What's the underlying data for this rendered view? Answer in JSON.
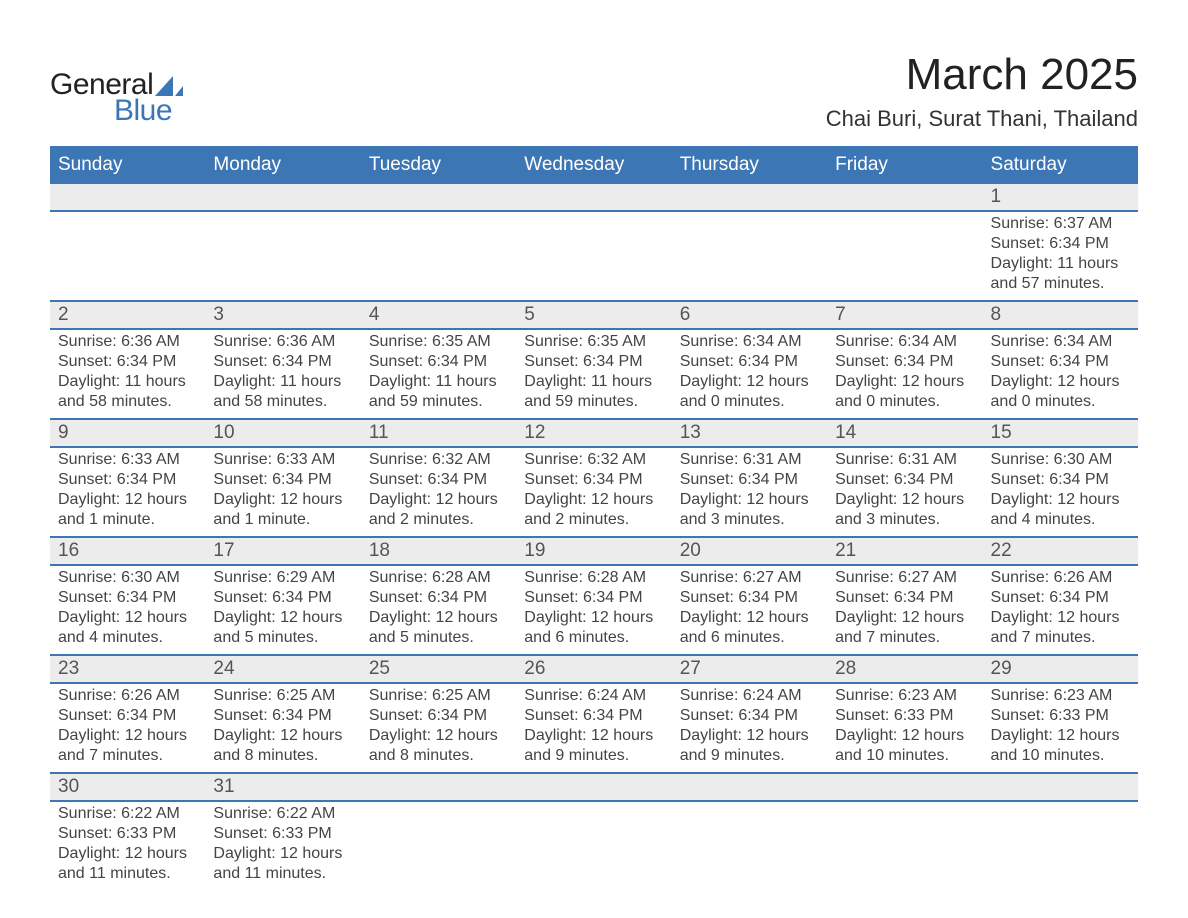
{
  "logo": {
    "text1": "General",
    "text2": "Blue",
    "shape_color": "#3d76b5"
  },
  "title": "March 2025",
  "location": "Chai Buri, Surat Thani, Thailand",
  "colors": {
    "header_bg": "#3d76b5",
    "header_text": "#ffffff",
    "daynum_bg": "#ececec",
    "row_border": "#3d76b5",
    "body_text": "#444444",
    "title_text": "#222222"
  },
  "typography": {
    "title_fontsize": 44,
    "location_fontsize": 22,
    "header_fontsize": 19,
    "daynum_fontsize": 19,
    "detail_fontsize": 16
  },
  "layout": {
    "columns": 7,
    "weeks": 6
  },
  "day_headers": [
    "Sunday",
    "Monday",
    "Tuesday",
    "Wednesday",
    "Thursday",
    "Friday",
    "Saturday"
  ],
  "weeks": [
    [
      null,
      null,
      null,
      null,
      null,
      null,
      {
        "n": "1",
        "sunrise": "6:37 AM",
        "sunset": "6:34 PM",
        "daylight": "11 hours and 57 minutes."
      }
    ],
    [
      {
        "n": "2",
        "sunrise": "6:36 AM",
        "sunset": "6:34 PM",
        "daylight": "11 hours and 58 minutes."
      },
      {
        "n": "3",
        "sunrise": "6:36 AM",
        "sunset": "6:34 PM",
        "daylight": "11 hours and 58 minutes."
      },
      {
        "n": "4",
        "sunrise": "6:35 AM",
        "sunset": "6:34 PM",
        "daylight": "11 hours and 59 minutes."
      },
      {
        "n": "5",
        "sunrise": "6:35 AM",
        "sunset": "6:34 PM",
        "daylight": "11 hours and 59 minutes."
      },
      {
        "n": "6",
        "sunrise": "6:34 AM",
        "sunset": "6:34 PM",
        "daylight": "12 hours and 0 minutes."
      },
      {
        "n": "7",
        "sunrise": "6:34 AM",
        "sunset": "6:34 PM",
        "daylight": "12 hours and 0 minutes."
      },
      {
        "n": "8",
        "sunrise": "6:34 AM",
        "sunset": "6:34 PM",
        "daylight": "12 hours and 0 minutes."
      }
    ],
    [
      {
        "n": "9",
        "sunrise": "6:33 AM",
        "sunset": "6:34 PM",
        "daylight": "12 hours and 1 minute."
      },
      {
        "n": "10",
        "sunrise": "6:33 AM",
        "sunset": "6:34 PM",
        "daylight": "12 hours and 1 minute."
      },
      {
        "n": "11",
        "sunrise": "6:32 AM",
        "sunset": "6:34 PM",
        "daylight": "12 hours and 2 minutes."
      },
      {
        "n": "12",
        "sunrise": "6:32 AM",
        "sunset": "6:34 PM",
        "daylight": "12 hours and 2 minutes."
      },
      {
        "n": "13",
        "sunrise": "6:31 AM",
        "sunset": "6:34 PM",
        "daylight": "12 hours and 3 minutes."
      },
      {
        "n": "14",
        "sunrise": "6:31 AM",
        "sunset": "6:34 PM",
        "daylight": "12 hours and 3 minutes."
      },
      {
        "n": "15",
        "sunrise": "6:30 AM",
        "sunset": "6:34 PM",
        "daylight": "12 hours and 4 minutes."
      }
    ],
    [
      {
        "n": "16",
        "sunrise": "6:30 AM",
        "sunset": "6:34 PM",
        "daylight": "12 hours and 4 minutes."
      },
      {
        "n": "17",
        "sunrise": "6:29 AM",
        "sunset": "6:34 PM",
        "daylight": "12 hours and 5 minutes."
      },
      {
        "n": "18",
        "sunrise": "6:28 AM",
        "sunset": "6:34 PM",
        "daylight": "12 hours and 5 minutes."
      },
      {
        "n": "19",
        "sunrise": "6:28 AM",
        "sunset": "6:34 PM",
        "daylight": "12 hours and 6 minutes."
      },
      {
        "n": "20",
        "sunrise": "6:27 AM",
        "sunset": "6:34 PM",
        "daylight": "12 hours and 6 minutes."
      },
      {
        "n": "21",
        "sunrise": "6:27 AM",
        "sunset": "6:34 PM",
        "daylight": "12 hours and 7 minutes."
      },
      {
        "n": "22",
        "sunrise": "6:26 AM",
        "sunset": "6:34 PM",
        "daylight": "12 hours and 7 minutes."
      }
    ],
    [
      {
        "n": "23",
        "sunrise": "6:26 AM",
        "sunset": "6:34 PM",
        "daylight": "12 hours and 7 minutes."
      },
      {
        "n": "24",
        "sunrise": "6:25 AM",
        "sunset": "6:34 PM",
        "daylight": "12 hours and 8 minutes."
      },
      {
        "n": "25",
        "sunrise": "6:25 AM",
        "sunset": "6:34 PM",
        "daylight": "12 hours and 8 minutes."
      },
      {
        "n": "26",
        "sunrise": "6:24 AM",
        "sunset": "6:34 PM",
        "daylight": "12 hours and 9 minutes."
      },
      {
        "n": "27",
        "sunrise": "6:24 AM",
        "sunset": "6:34 PM",
        "daylight": "12 hours and 9 minutes."
      },
      {
        "n": "28",
        "sunrise": "6:23 AM",
        "sunset": "6:33 PM",
        "daylight": "12 hours and 10 minutes."
      },
      {
        "n": "29",
        "sunrise": "6:23 AM",
        "sunset": "6:33 PM",
        "daylight": "12 hours and 10 minutes."
      }
    ],
    [
      {
        "n": "30",
        "sunrise": "6:22 AM",
        "sunset": "6:33 PM",
        "daylight": "12 hours and 11 minutes."
      },
      {
        "n": "31",
        "sunrise": "6:22 AM",
        "sunset": "6:33 PM",
        "daylight": "12 hours and 11 minutes."
      },
      null,
      null,
      null,
      null,
      null
    ]
  ],
  "labels": {
    "sunrise": "Sunrise:",
    "sunset": "Sunset:",
    "daylight": "Daylight:"
  }
}
